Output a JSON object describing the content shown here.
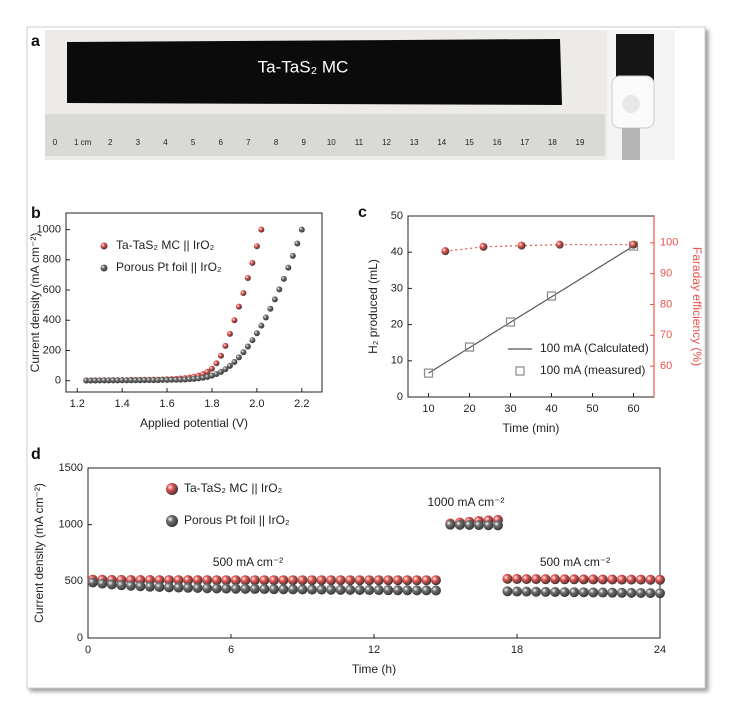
{
  "photo": {
    "panel": "a",
    "label": "Ta-TaS₂ MC",
    "ruler_labels": [
      "0",
      "1 cm",
      "2",
      "3",
      "4",
      "5",
      "6",
      "7",
      "8",
      "9",
      "10",
      "11",
      "12",
      "13",
      "14",
      "15",
      "16",
      "17",
      "18",
      "19"
    ]
  },
  "chart_data": [
    {
      "type": "scatter",
      "panel": "b",
      "xlabel": "Applied potential (V)",
      "ylabel": "Current density (mA cm⁻²)",
      "xlim": [
        1.15,
        2.29
      ],
      "ylim": [
        -75,
        1110
      ],
      "xticks": [
        1.2,
        1.4,
        1.6,
        1.8,
        {
          "value": 2,
          "label": "2.0"
        },
        2.2
      ],
      "yticks": [
        0,
        200,
        400,
        600,
        800,
        1000
      ],
      "series": [
        {
          "name": "Ta-TaS₂ MC || IrO₂",
          "color": "#e8534f",
          "marker": "sphere",
          "x": [
            1.24,
            1.26,
            1.28,
            1.3,
            1.32,
            1.34,
            1.36,
            1.38,
            1.4,
            1.42,
            1.44,
            1.46,
            1.48,
            1.5,
            1.52,
            1.54,
            1.56,
            1.58,
            1.6,
            1.62,
            1.64,
            1.66,
            1.68,
            1.7,
            1.72,
            1.74,
            1.76,
            1.78,
            1.8,
            1.82,
            1.84,
            1.86,
            1.88,
            1.9,
            1.92,
            1.94,
            1.96,
            1.98,
            2,
            2.02
          ],
          "values": [
            2,
            2,
            3,
            3,
            3,
            3,
            4,
            4,
            4,
            4,
            5,
            5,
            5,
            6,
            6,
            7,
            7,
            8,
            9,
            10,
            12,
            14,
            17,
            21,
            26,
            33,
            43,
            58,
            80,
            115,
            165,
            230,
            310,
            400,
            490,
            580,
            680,
            780,
            890,
            1000
          ]
        },
        {
          "name": "Porous Pt foil || IrO₂",
          "color": "#6e6e6e",
          "marker": "sphere",
          "x": [
            1.24,
            1.26,
            1.28,
            1.3,
            1.32,
            1.34,
            1.36,
            1.38,
            1.4,
            1.42,
            1.44,
            1.46,
            1.48,
            1.5,
            1.52,
            1.54,
            1.56,
            1.58,
            1.6,
            1.62,
            1.64,
            1.66,
            1.68,
            1.7,
            1.72,
            1.74,
            1.76,
            1.78,
            1.8,
            1.82,
            1.84,
            1.86,
            1.88,
            1.9,
            1.92,
            1.94,
            1.96,
            1.98,
            2,
            2.02,
            2.04,
            2.06,
            2.08,
            2.1,
            2.12,
            2.14,
            2.16,
            2.18,
            2.2
          ],
          "values": [
            1,
            1,
            1,
            2,
            2,
            2,
            2,
            2,
            3,
            3,
            3,
            3,
            3,
            4,
            4,
            4,
            4,
            5,
            5,
            6,
            6,
            7,
            8,
            10,
            12,
            15,
            19,
            25,
            33,
            44,
            58,
            76,
            98,
            124,
            154,
            188,
            226,
            268,
            314,
            364,
            418,
            476,
            538,
            604,
            674,
            748,
            826,
            908,
            1000
          ]
        }
      ]
    },
    {
      "type": "scatter",
      "panel": "c",
      "xlabel": "Time (min)",
      "ylabel": "H₂ produced (mL)",
      "y2label": "Faraday efficiency (%)",
      "y2color": "#e8534f",
      "xlim": [
        5,
        65
      ],
      "ylim": [
        0,
        50
      ],
      "y2lim": [
        50,
        108.7
      ],
      "xticks": [
        10,
        20,
        30,
        40,
        50,
        60
      ],
      "yticks": [
        0,
        10,
        20,
        30,
        40,
        50
      ],
      "y2ticks": [
        60,
        70,
        80,
        90,
        100
      ],
      "series": [
        {
          "name": "100 mA (Calculated)",
          "color": "#555555",
          "line": "solid",
          "x": [
            10,
            60
          ],
          "values": [
            6.6,
            41.7
          ]
        },
        {
          "name": "100 mA (measured)",
          "color": "#8a8a8a",
          "marker": "open-square",
          "x": [
            10,
            20,
            30,
            40,
            60
          ],
          "values": [
            6.6,
            13.8,
            20.7,
            27.9,
            41.7
          ]
        },
        {
          "color": "#e8534f",
          "marker": "sphere",
          "line": "dotted",
          "axis": "y2",
          "x": [
            14.1,
            23.4,
            32.7,
            42,
            60
          ],
          "values": [
            97.3,
            98.7,
            99.1,
            99.4,
            99.4
          ]
        }
      ]
    },
    {
      "type": "scatter",
      "panel": "d",
      "xlabel": "Time (h)",
      "ylabel": "Current density (mA cm⁻²)",
      "xlim": [
        0,
        24
      ],
      "ylim": [
        0,
        1500
      ],
      "xticks": [
        0,
        6,
        12,
        18,
        24
      ],
      "yticks": [
        0,
        500,
        1000,
        1500
      ],
      "annotations": [
        "500 mA cm⁻²",
        "1000 mA cm⁻²",
        "500 mA cm⁻²"
      ],
      "series": [
        {
          "name": "Ta-TaS₂ MC || IrO₂",
          "color": "#e8534f",
          "marker": "sphere",
          "x": [
            0.2,
            0.6,
            1,
            1.4,
            1.8,
            2.2,
            2.6,
            3,
            3.4,
            3.8,
            4.2,
            4.6,
            5,
            5.4,
            5.8,
            6.2,
            6.6,
            7,
            7.4,
            7.8,
            8.2,
            8.6,
            9,
            9.4,
            9.8,
            10.2,
            10.6,
            11,
            11.4,
            11.8,
            12.2,
            12.6,
            13,
            13.4,
            13.8,
            14.2,
            14.6,
            15.2,
            15.6,
            16,
            16.4,
            16.8,
            17.2,
            17.6,
            18,
            18.4,
            18.8,
            19.2,
            19.6,
            20,
            20.4,
            20.8,
            21.2,
            21.6,
            22,
            22.4,
            22.8,
            23.2,
            23.6,
            24
          ],
          "values": [
            515,
            514,
            513,
            513,
            512,
            512,
            512,
            511,
            511,
            511,
            511,
            511,
            511,
            510,
            510,
            510,
            510,
            510,
            510,
            510,
            510,
            510,
            510,
            510,
            510,
            510,
            510,
            510,
            510,
            510,
            510,
            510,
            510,
            510,
            510,
            510,
            510,
            1010,
            1018,
            1025,
            1032,
            1038,
            1042,
            522,
            521,
            520,
            520,
            519,
            519,
            518,
            518,
            517,
            517,
            516,
            516,
            515,
            515,
            515,
            514,
            514
          ]
        },
        {
          "name": "Porous Pt foil || IrO₂",
          "color": "#6e6e6e",
          "marker": "sphere",
          "x": [
            0.2,
            0.6,
            1,
            1.4,
            1.8,
            2.2,
            2.6,
            3,
            3.4,
            3.8,
            4.2,
            4.6,
            5,
            5.4,
            5.8,
            6.2,
            6.6,
            7,
            7.4,
            7.8,
            8.2,
            8.6,
            9,
            9.4,
            9.8,
            10.2,
            10.6,
            11,
            11.4,
            11.8,
            12.2,
            12.6,
            13,
            13.4,
            13.8,
            14.2,
            14.6,
            15.2,
            15.6,
            16,
            16.4,
            16.8,
            17.2,
            17.6,
            18,
            18.4,
            18.8,
            19.2,
            19.6,
            20,
            20.4,
            20.8,
            21.2,
            21.6,
            22,
            22.4,
            22.8,
            23.2,
            23.6,
            24
          ],
          "values": [
            490,
            480,
            472,
            466,
            461,
            457,
            453,
            450,
            447,
            445,
            443,
            441,
            439,
            437,
            436,
            435,
            434,
            433,
            432,
            431,
            430,
            429,
            428,
            427,
            427,
            426,
            425,
            425,
            424,
            423,
            423,
            422,
            421,
            421,
            420,
            420,
            419,
            1000,
            998,
            997,
            996,
            995,
            994,
            412,
            410,
            409,
            408,
            407,
            406,
            405,
            404,
            403,
            402,
            401,
            400,
            399,
            398,
            397,
            396,
            395
          ]
        }
      ]
    }
  ]
}
